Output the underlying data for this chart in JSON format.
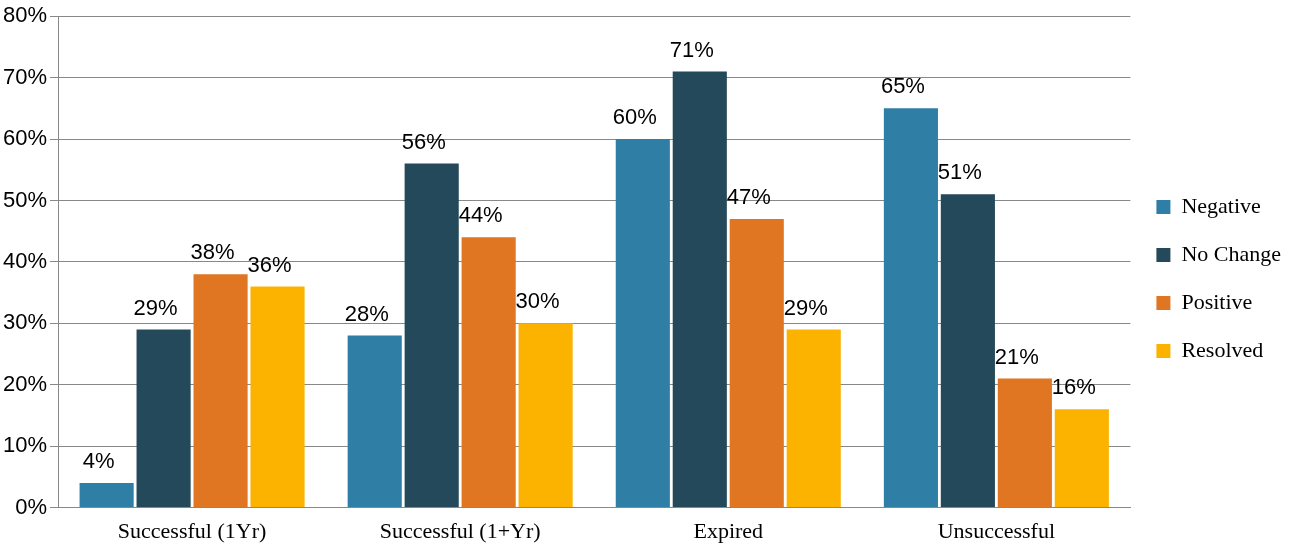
{
  "chart_data": {
    "type": "bar",
    "categories": [
      "Successful (1Yr)",
      "Successful (1+Yr)",
      "Expired",
      "Unsuccessful"
    ],
    "series": [
      {
        "name": "Negative",
        "color": "#2e7ea6",
        "values": [
          4,
          28,
          60,
          65
        ],
        "value_labels": [
          "4%",
          "28%",
          "60%",
          "65%"
        ]
      },
      {
        "name": "No Change",
        "color": "#23495a",
        "values": [
          29,
          56,
          71,
          51
        ],
        "value_labels": [
          "29%",
          "56%",
          "71%",
          "51%"
        ]
      },
      {
        "name": "Positive",
        "color": "#e07522",
        "values": [
          38,
          44,
          47,
          21
        ],
        "value_labels": [
          "38%",
          "44%",
          "47%",
          "21%"
        ]
      },
      {
        "name": "Resolved",
        "color": "#fbb300",
        "values": [
          36,
          30,
          29,
          16
        ],
        "value_labels": [
          "36%",
          "30%",
          "29%",
          "16%"
        ]
      }
    ],
    "ylim": [
      0,
      80
    ],
    "yticks": [
      {
        "value": 0,
        "label": "0%"
      },
      {
        "value": 10,
        "label": "10%"
      },
      {
        "value": 20,
        "label": "20%"
      },
      {
        "value": 30,
        "label": "30%"
      },
      {
        "value": 40,
        "label": "40%"
      },
      {
        "value": 50,
        "label": "50%"
      },
      {
        "value": 60,
        "label": "60%"
      },
      {
        "value": 70,
        "label": "70%"
      },
      {
        "value": 80,
        "label": "80%"
      }
    ],
    "grid": "y",
    "legend": "right"
  }
}
